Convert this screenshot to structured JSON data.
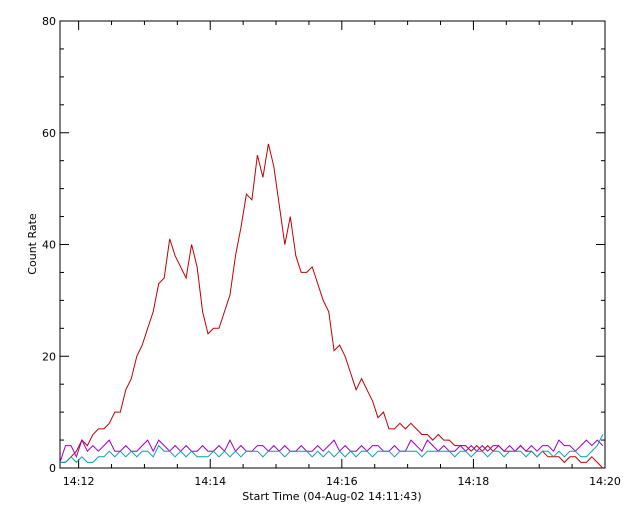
{
  "chart_data": {
    "type": "line",
    "title": "",
    "xlabel": "Start Time (04-Aug-02 14:11:43)",
    "ylabel": "Count Rate",
    "x_unit": "minutes",
    "xlim": [
      "14:11:43",
      "14:20:00"
    ],
    "ylim": [
      0,
      80
    ],
    "x_ticks": [
      "14:12",
      "14:14",
      "14:16",
      "14:18",
      "14:20"
    ],
    "y_ticks": [
      "0",
      "20",
      "40",
      "60",
      "80"
    ],
    "grid": false,
    "colors": {
      "red": "#c00000",
      "purple": "#a000c0",
      "cyan": "#00a0b0",
      "axis": "#000000"
    },
    "series": [
      {
        "color_key": "red",
        "x": [
          "14:11:43",
          "14:11:48",
          "14:11:53",
          "14:11:58",
          "14:12:03",
          "14:12:08",
          "14:12:13",
          "14:12:18",
          "14:12:23",
          "14:12:28",
          "14:12:33",
          "14:12:38",
          "14:12:43",
          "14:12:48",
          "14:12:53",
          "14:12:58",
          "14:13:03",
          "14:13:08",
          "14:13:13",
          "14:13:18",
          "14:13:23",
          "14:13:28",
          "14:13:33",
          "14:13:38",
          "14:13:43",
          "14:13:48",
          "14:13:53",
          "14:13:58",
          "14:14:03",
          "14:14:08",
          "14:14:13",
          "14:14:18",
          "14:14:23",
          "14:14:28",
          "14:14:33",
          "14:14:38",
          "14:14:43",
          "14:14:48",
          "14:14:53",
          "14:14:58",
          "14:15:03",
          "14:15:08",
          "14:15:13",
          "14:15:18",
          "14:15:23",
          "14:15:28",
          "14:15:33",
          "14:15:38",
          "14:15:43",
          "14:15:48",
          "14:15:53",
          "14:15:58",
          "14:16:03",
          "14:16:08",
          "14:16:13",
          "14:16:18",
          "14:16:23",
          "14:16:28",
          "14:16:33",
          "14:16:38",
          "14:16:43",
          "14:16:48",
          "14:16:53",
          "14:16:58",
          "14:17:03",
          "14:17:08",
          "14:17:13",
          "14:17:18",
          "14:17:23",
          "14:17:28",
          "14:17:33",
          "14:17:38",
          "14:17:43",
          "14:17:48",
          "14:17:53",
          "14:17:58",
          "14:18:03",
          "14:18:08",
          "14:18:13",
          "14:18:18",
          "14:18:23",
          "14:18:28",
          "14:18:33",
          "14:18:38",
          "14:18:43",
          "14:18:48",
          "14:18:53",
          "14:18:58",
          "14:19:03",
          "14:19:08",
          "14:19:13",
          "14:19:18",
          "14:19:23",
          "14:19:28",
          "14:19:33",
          "14:19:38",
          "14:19:43",
          "14:19:48",
          "14:19:53",
          "14:19:58"
        ],
        "y": [
          1,
          1,
          2,
          3,
          5,
          4,
          6,
          7,
          7,
          8,
          10,
          10,
          14,
          16,
          20,
          22,
          25,
          28,
          33,
          34,
          41,
          38,
          36,
          34,
          40,
          36,
          28,
          24,
          25,
          25,
          28,
          31,
          38,
          43,
          49,
          48,
          56,
          52,
          58,
          54,
          47,
          40,
          45,
          38,
          35,
          35,
          36,
          33,
          30,
          28,
          21,
          22,
          20,
          17,
          14,
          16,
          14,
          12,
          9,
          10,
          7,
          7,
          8,
          7,
          8,
          7,
          6,
          6,
          5,
          6,
          5,
          5,
          4,
          4,
          4,
          3,
          4,
          3,
          4,
          3,
          4,
          3,
          3,
          3,
          4,
          3,
          3,
          2,
          3,
          2,
          2,
          2,
          1,
          2,
          2,
          1,
          1,
          2,
          1,
          0
        ]
      },
      {
        "color_key": "purple",
        "x": [
          "14:11:43",
          "14:11:48",
          "14:11:53",
          "14:11:58",
          "14:12:03",
          "14:12:08",
          "14:12:13",
          "14:12:18",
          "14:12:23",
          "14:12:28",
          "14:12:33",
          "14:12:38",
          "14:12:43",
          "14:12:48",
          "14:12:53",
          "14:12:58",
          "14:13:03",
          "14:13:08",
          "14:13:13",
          "14:13:18",
          "14:13:23",
          "14:13:28",
          "14:13:33",
          "14:13:38",
          "14:13:43",
          "14:13:48",
          "14:13:53",
          "14:13:58",
          "14:14:03",
          "14:14:08",
          "14:14:13",
          "14:14:18",
          "14:14:23",
          "14:14:28",
          "14:14:33",
          "14:14:38",
          "14:14:43",
          "14:14:48",
          "14:14:53",
          "14:14:58",
          "14:15:03",
          "14:15:08",
          "14:15:13",
          "14:15:18",
          "14:15:23",
          "14:15:28",
          "14:15:33",
          "14:15:38",
          "14:15:43",
          "14:15:48",
          "14:15:53",
          "14:15:58",
          "14:16:03",
          "14:16:08",
          "14:16:13",
          "14:16:18",
          "14:16:23",
          "14:16:28",
          "14:16:33",
          "14:16:38",
          "14:16:43",
          "14:16:48",
          "14:16:53",
          "14:16:58",
          "14:17:03",
          "14:17:08",
          "14:17:13",
          "14:17:18",
          "14:17:23",
          "14:17:28",
          "14:17:33",
          "14:17:38",
          "14:17:43",
          "14:17:48",
          "14:17:53",
          "14:17:58",
          "14:18:03",
          "14:18:08",
          "14:18:13",
          "14:18:18",
          "14:18:23",
          "14:18:28",
          "14:18:33",
          "14:18:38",
          "14:18:43",
          "14:18:48",
          "14:18:53",
          "14:18:58",
          "14:19:03",
          "14:19:08",
          "14:19:13",
          "14:19:18",
          "14:19:23",
          "14:19:28",
          "14:19:33",
          "14:19:38",
          "14:19:43",
          "14:19:48",
          "14:19:53",
          "14:19:58"
        ],
        "y": [
          1,
          4,
          4,
          2,
          5,
          3,
          4,
          3,
          4,
          5,
          3,
          3,
          4,
          3,
          3,
          4,
          5,
          3,
          5,
          4,
          3,
          4,
          3,
          4,
          3,
          3,
          4,
          3,
          3,
          4,
          3,
          5,
          3,
          4,
          3,
          3,
          4,
          4,
          3,
          4,
          3,
          4,
          3,
          3,
          4,
          3,
          3,
          4,
          3,
          4,
          5,
          3,
          4,
          3,
          3,
          4,
          3,
          4,
          4,
          3,
          3,
          4,
          3,
          3,
          5,
          4,
          3,
          5,
          4,
          3,
          4,
          3,
          3,
          4,
          3,
          4,
          3,
          4,
          3,
          4,
          4,
          3,
          4,
          3,
          4,
          3,
          4,
          3,
          4,
          4,
          3,
          5,
          4,
          4,
          3,
          4,
          5,
          4,
          5,
          4
        ]
      },
      {
        "color_key": "cyan",
        "x": [
          "14:11:43",
          "14:11:48",
          "14:11:53",
          "14:11:58",
          "14:12:03",
          "14:12:08",
          "14:12:13",
          "14:12:18",
          "14:12:23",
          "14:12:28",
          "14:12:33",
          "14:12:38",
          "14:12:43",
          "14:12:48",
          "14:12:53",
          "14:12:58",
          "14:13:03",
          "14:13:08",
          "14:13:13",
          "14:13:18",
          "14:13:23",
          "14:13:28",
          "14:13:33",
          "14:13:38",
          "14:13:43",
          "14:13:48",
          "14:13:53",
          "14:13:58",
          "14:14:03",
          "14:14:08",
          "14:14:13",
          "14:14:18",
          "14:14:23",
          "14:14:28",
          "14:14:33",
          "14:14:38",
          "14:14:43",
          "14:14:48",
          "14:14:53",
          "14:14:58",
          "14:15:03",
          "14:15:08",
          "14:15:13",
          "14:15:18",
          "14:15:23",
          "14:15:28",
          "14:15:33",
          "14:15:38",
          "14:15:43",
          "14:15:48",
          "14:15:53",
          "14:15:58",
          "14:16:03",
          "14:16:08",
          "14:16:13",
          "14:16:18",
          "14:16:23",
          "14:16:28",
          "14:16:33",
          "14:16:38",
          "14:16:43",
          "14:16:48",
          "14:16:53",
          "14:16:58",
          "14:17:03",
          "14:17:08",
          "14:17:13",
          "14:17:18",
          "14:17:23",
          "14:17:28",
          "14:17:33",
          "14:17:38",
          "14:17:43",
          "14:17:48",
          "14:17:53",
          "14:17:58",
          "14:18:03",
          "14:18:08",
          "14:18:13",
          "14:18:18",
          "14:18:23",
          "14:18:28",
          "14:18:33",
          "14:18:38",
          "14:18:43",
          "14:18:48",
          "14:18:53",
          "14:18:58",
          "14:19:03",
          "14:19:08",
          "14:19:13",
          "14:19:18",
          "14:19:23",
          "14:19:28",
          "14:19:33",
          "14:19:38",
          "14:19:43",
          "14:19:48",
          "14:19:53",
          "14:19:58"
        ],
        "y": [
          1,
          1,
          2,
          1,
          2,
          1,
          1,
          2,
          2,
          3,
          2,
          3,
          2,
          3,
          2,
          3,
          3,
          2,
          4,
          3,
          3,
          2,
          3,
          2,
          3,
          2,
          2,
          2,
          3,
          2,
          3,
          2,
          3,
          2,
          3,
          3,
          3,
          2,
          3,
          3,
          3,
          2,
          3,
          3,
          3,
          3,
          2,
          3,
          2,
          3,
          2,
          3,
          2,
          3,
          2,
          3,
          3,
          2,
          3,
          3,
          3,
          2,
          3,
          3,
          3,
          3,
          2,
          3,
          3,
          3,
          3,
          3,
          2,
          3,
          3,
          2,
          3,
          3,
          2,
          3,
          3,
          2,
          3,
          3,
          3,
          2,
          3,
          2,
          3,
          3,
          2,
          3,
          2,
          3,
          3,
          2,
          2,
          3,
          4,
          6
        ]
      }
    ]
  }
}
